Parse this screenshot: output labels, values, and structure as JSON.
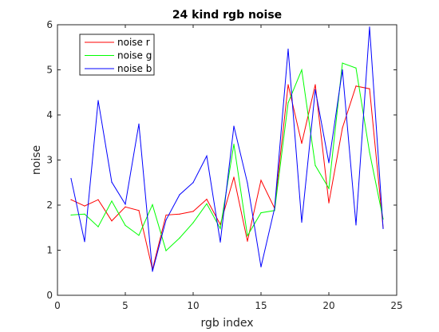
{
  "chart_data": {
    "type": "line",
    "title": "24 kind rgb noise",
    "xlabel": "rgb index",
    "ylabel": "noise",
    "xlim": [
      0,
      25
    ],
    "ylim": [
      0,
      6
    ],
    "xticks": [
      "0",
      "5",
      "10",
      "15",
      "20",
      "25"
    ],
    "yticks": [
      "0",
      "1",
      "2",
      "3",
      "4",
      "5",
      "6"
    ],
    "grid": false,
    "legend_position": "top-left",
    "x": [
      1,
      2,
      3,
      4,
      5,
      6,
      7,
      8,
      9,
      10,
      11,
      12,
      13,
      14,
      15,
      16,
      17,
      18,
      19,
      20,
      21,
      22,
      23,
      24
    ],
    "series": [
      {
        "name": "noise r",
        "color": "#ff0000",
        "values": [
          2.12,
          1.98,
          2.12,
          1.65,
          1.96,
          1.88,
          0.57,
          1.78,
          1.8,
          1.86,
          2.13,
          1.57,
          2.62,
          1.2,
          2.55,
          1.93,
          4.67,
          3.37,
          4.67,
          2.05,
          3.71,
          4.64,
          4.58,
          1.5
        ]
      },
      {
        "name": "noise g",
        "color": "#00ff00",
        "values": [
          1.78,
          1.8,
          1.52,
          2.09,
          1.55,
          1.33,
          2.01,
          0.99,
          1.27,
          1.61,
          2.03,
          1.48,
          3.35,
          1.32,
          1.83,
          1.88,
          4.27,
          5.0,
          2.88,
          2.37,
          5.15,
          5.04,
          3.17,
          1.69
        ]
      },
      {
        "name": "noise b",
        "color": "#0000ff",
        "values": [
          2.59,
          1.19,
          4.32,
          2.51,
          2.02,
          3.8,
          0.53,
          1.67,
          2.23,
          2.5,
          3.09,
          1.18,
          3.75,
          2.49,
          0.63,
          1.93,
          5.46,
          1.62,
          4.56,
          2.94,
          5.0,
          1.56,
          5.95,
          1.48
        ]
      }
    ]
  }
}
